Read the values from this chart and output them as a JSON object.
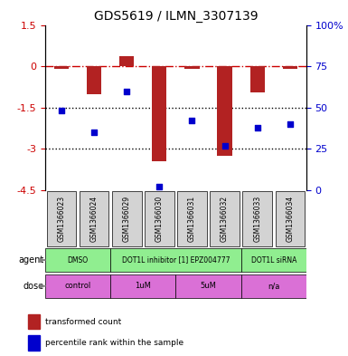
{
  "title": "GDS5619 / ILMN_3307139",
  "samples": [
    "GSM1366023",
    "GSM1366024",
    "GSM1366029",
    "GSM1366030",
    "GSM1366031",
    "GSM1366032",
    "GSM1366033",
    "GSM1366034"
  ],
  "bar_values": [
    -0.08,
    -1.0,
    0.38,
    -3.45,
    -0.08,
    -3.25,
    -0.95,
    -0.08
  ],
  "percentile_values": [
    48,
    35,
    60,
    2,
    42,
    27,
    38,
    40
  ],
  "ylim_left": [
    -4.5,
    1.5
  ],
  "ylim_right": [
    0,
    100
  ],
  "yticks_left": [
    1.5,
    0,
    -1.5,
    -3,
    -4.5
  ],
  "yticks_right": [
    100,
    75,
    50,
    25,
    0
  ],
  "hlines_dotted": [
    -1.5,
    -3.0
  ],
  "hline_dashed": 0,
  "bar_color": "#b22222",
  "dot_color": "#0000cd",
  "agent_groups": [
    {
      "label": "DMSO",
      "start": 0,
      "end": 2,
      "color": "#90ee90"
    },
    {
      "label": "DOT1L inhibitor [1] EPZ004777",
      "start": 2,
      "end": 6,
      "color": "#90ee90"
    },
    {
      "label": "DOT1L siRNA",
      "start": 6,
      "end": 8,
      "color": "#90ee90"
    }
  ],
  "dose_groups": [
    {
      "label": "control",
      "start": 0,
      "end": 2,
      "color": "#da70d6"
    },
    {
      "label": "1uM",
      "start": 2,
      "end": 4,
      "color": "#da70d6"
    },
    {
      "label": "5uM",
      "start": 4,
      "end": 6,
      "color": "#da70d6"
    },
    {
      "label": "n/a",
      "start": 6,
      "end": 8,
      "color": "#da70d6"
    }
  ],
  "legend_bar_label": "transformed count",
  "legend_dot_label": "percentile rank within the sample",
  "left_tick_color": "#cc0000",
  "right_tick_color": "#0000cd",
  "bg_color": "#ffffff",
  "sample_bg_color": "#d3d3d3"
}
